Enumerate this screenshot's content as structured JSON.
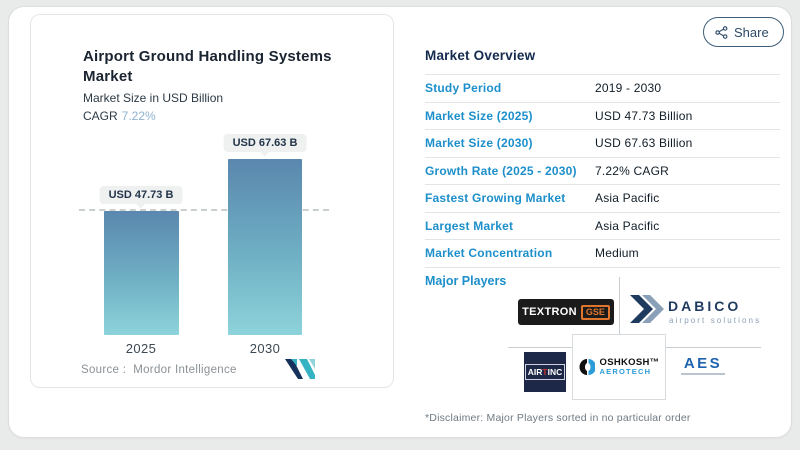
{
  "left_panel": {
    "title": "Airport Ground Handling Systems Market",
    "subtitle": "Market Size in USD Billion",
    "cagr_label": "CAGR",
    "cagr_value": "7.22%",
    "source_label": "Source :",
    "source_value": "Mordor Intelligence"
  },
  "chart_data": {
    "type": "bar",
    "categories": [
      "2025",
      "2030"
    ],
    "values": [
      47.73,
      67.63
    ],
    "labels": [
      "USD 47.73 B",
      "USD 67.63 B"
    ],
    "title": "Airport Ground Handling Systems Market",
    "ylabel": "Market Size in USD Billion",
    "unit": "USD Billion",
    "cagr": "7.22%",
    "reference_line_at": 47.73,
    "grid": false,
    "bar_gradient": [
      "#5a87ae",
      "#8dd3da"
    ]
  },
  "share_button": {
    "label": "Share"
  },
  "overview": {
    "title": "Market Overview",
    "rows": [
      {
        "label": "Study Period",
        "value": "2019 - 2030"
      },
      {
        "label": "Market Size (2025)",
        "value": "USD 47.73 Billion"
      },
      {
        "label": "Market Size (2030)",
        "value": "USD 67.63 Billion"
      },
      {
        "label": "Growth Rate (2025 - 2030)",
        "value": "7.22% CAGR"
      },
      {
        "label": "Fastest Growing Market",
        "value": "Asia Pacific"
      },
      {
        "label": "Largest Market",
        "value": "Asia Pacific"
      },
      {
        "label": "Market Concentration",
        "value": "Medium"
      }
    ],
    "major_players_label": "Major Players",
    "disclaimer": "*Disclaimer: Major Players sorted in no particular order"
  },
  "logos": {
    "textron": {
      "name": "TEXTRON",
      "badge": "GSE"
    },
    "dabico": {
      "name": "DABICO",
      "tagline": "airport solutions"
    },
    "airt": {
      "air": "AIR",
      "t": "T",
      "inc": "INC"
    },
    "oshkosh": {
      "name": "OSHKOSH™",
      "sub": "AeroTech"
    },
    "aes": {
      "name": "AES"
    }
  },
  "colors": {
    "accent_blue": "#1d8fcb",
    "navy": "#142a4e",
    "bar_top": "#5a87ae",
    "bar_bottom": "#8dd3da",
    "cagr_value": "#8fb3d1",
    "textron_orange": "#e0762e",
    "aes_blue": "#1f63b0",
    "oshkosh_teal": "#2b9cd8"
  }
}
